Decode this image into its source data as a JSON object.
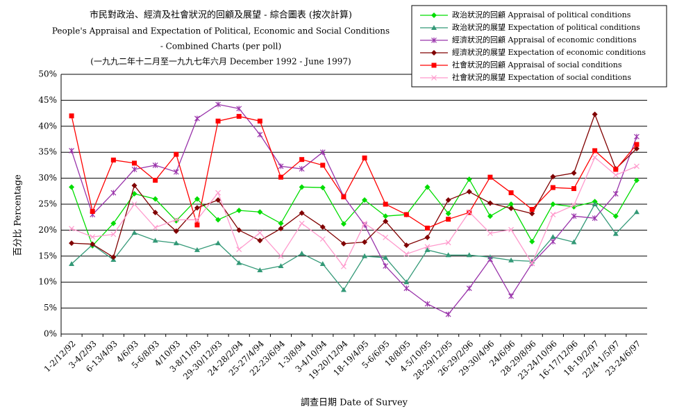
{
  "chart_data": {
    "type": "line",
    "title": [
      "市民對政治、經濟及社會狀況的回顧及展望 - 綜合圖表 (按次計算)",
      "People's Appraisal and Expectation of Political, Economic and Social Conditions",
      "- Combined Charts (per poll)",
      "(一九九二年十二月至一九九七年六月 December 1992 - June 1997)"
    ],
    "xlabel": "調查日期 Date of Survey",
    "ylabel": "百分比 Percentage",
    "categories": [
      "1-2/12/92",
      "3-4/2/93",
      "6-13/4/93",
      "4/6/93",
      "5-6/8/93",
      "4/10/93",
      "3-8/11/93",
      "29-30/12/93",
      "24-28/2/94",
      "25-27/4/94",
      "22-23/6/94",
      "1-3/8/94",
      "3-4/10/94",
      "19-20/12/94",
      "18-19/4/95",
      "5-6/6/95",
      "18/8/95",
      "4-5/10/95",
      "28-29/12/95",
      "26-29/2/96",
      "29-30/4/96",
      "24/6/96",
      "28-29/8/96",
      "23-24/10/96",
      "16-17/12/96",
      "18-19/2/97",
      "22/4-1/5/97",
      "23-24/6/97"
    ],
    "series": [
      {
        "name": "政治狀況的回顧 Appraisal of political conditions",
        "color": "#00dd00",
        "marker": "diamond",
        "values": [
          28.3,
          17,
          21.3,
          27,
          26,
          21.8,
          26,
          22,
          23.8,
          23.5,
          21.3,
          28.3,
          28.2,
          21.2,
          25.8,
          22.7,
          23,
          28.3,
          23.2,
          29.8,
          22.7,
          25,
          17.8,
          25,
          24.5,
          25.5,
          22.7,
          29.6
        ]
      },
      {
        "name": "政治狀況的展望 Expectation of political conditions",
        "color": "#339977",
        "marker": "triangle",
        "values": [
          13.5,
          17.2,
          14.3,
          19.5,
          18,
          17.5,
          16.2,
          17.5,
          13.7,
          12.3,
          13.1,
          15.5,
          13.5,
          8.5,
          15,
          14.7,
          10,
          16.2,
          15.2,
          15.2,
          14.8,
          14.2,
          14,
          18.7,
          17.7,
          25,
          19.3,
          23.5
        ]
      },
      {
        "name": "經濟狀況的回顧 Appraisal of economic conditions",
        "color": "#9933aa",
        "marker": "star",
        "values": [
          35.3,
          23,
          27.2,
          31.7,
          32.5,
          31.2,
          41.5,
          44.2,
          43.4,
          38.4,
          32.3,
          31.8,
          35,
          26.5,
          21,
          13.1,
          8.8,
          5.8,
          3.8,
          8.8,
          14.4,
          7.3,
          13.6,
          17.8,
          22.7,
          22.3,
          27,
          38
        ]
      },
      {
        "name": "經濟狀況的展望 Expectation of economic conditions",
        "color": "#800000",
        "marker": "diamond",
        "values": [
          17.5,
          17.3,
          14.8,
          28.6,
          23.4,
          19.8,
          24.3,
          25.8,
          20,
          18,
          20.3,
          23.3,
          20.6,
          17.4,
          17.7,
          21.7,
          17.1,
          18.6,
          25.8,
          27.4,
          25.2,
          24.2,
          23.2,
          30.3,
          31,
          42.3,
          31.8,
          35.7
        ]
      },
      {
        "name": "社會狀況的回顧 Appraisal of social conditions",
        "color": "#ff0000",
        "marker": "square",
        "values": [
          42,
          23.6,
          33.5,
          32.9,
          29.6,
          34.6,
          21,
          41,
          41.9,
          41,
          30.2,
          33.6,
          32.5,
          26.4,
          33.9,
          25,
          23,
          20.4,
          22.1,
          23.4,
          30.2,
          27.2,
          24,
          28.2,
          28,
          35.3,
          31.7,
          36.5
        ]
      },
      {
        "name": "社會狀況的展望 Expectation of social conditions",
        "color": "#ff99cc",
        "marker": "cross",
        "values": [
          20.3,
          18.7,
          19.2,
          25,
          20.5,
          22,
          22,
          27.2,
          16.3,
          19.5,
          15,
          21.3,
          18.3,
          13,
          21.3,
          18.6,
          15.4,
          16.8,
          17.6,
          23.5,
          19.4,
          20.1,
          13.6,
          23,
          24.8,
          34,
          30.6,
          32.3
        ]
      }
    ],
    "ylim": [
      0,
      50
    ],
    "yticks": [
      {
        "value": 0,
        "label": "0%"
      },
      {
        "value": 5,
        "label": "5%"
      },
      {
        "value": 10,
        "label": "10%"
      },
      {
        "value": 15,
        "label": "15%"
      },
      {
        "value": 20,
        "label": "20%"
      },
      {
        "value": 25,
        "label": "25%"
      },
      {
        "value": 30,
        "label": "30%"
      },
      {
        "value": 35,
        "label": "35%"
      },
      {
        "value": 40,
        "label": "40%"
      },
      {
        "value": 45,
        "label": "45%"
      },
      {
        "value": 50,
        "label": "50%"
      }
    ],
    "grid": true,
    "legend": "top-right"
  }
}
